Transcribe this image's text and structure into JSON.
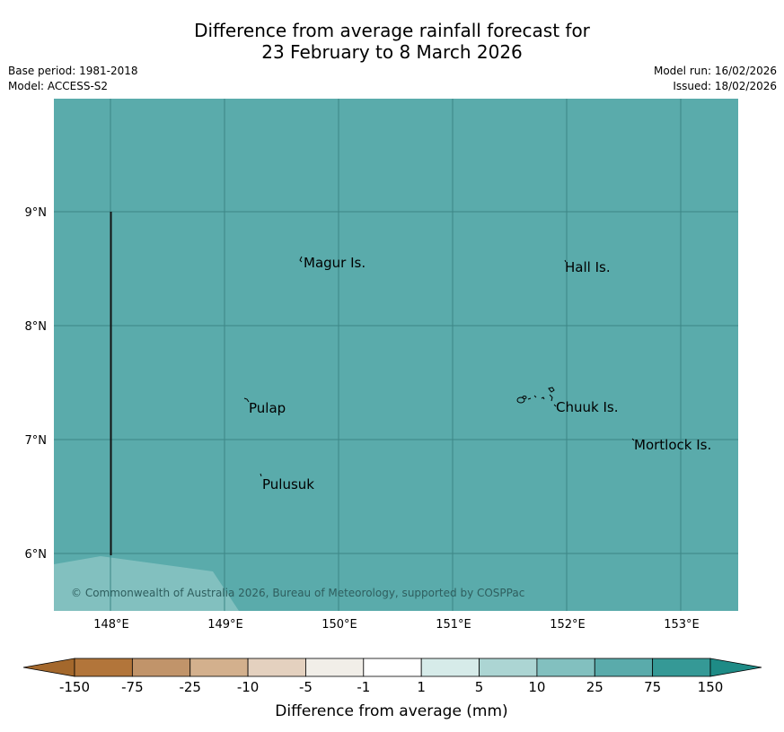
{
  "title": {
    "line1": "Difference from average rainfall forecast for",
    "line2": "23 February to 8 March 2026"
  },
  "meta": {
    "base_period": "Base period: 1981-2018",
    "model": "Model: ACCESS-S2",
    "model_run": "Model run: 16/02/2026",
    "issued": "Issued: 18/02/2026"
  },
  "map": {
    "longitude_ticks": [
      "148°E",
      "149°E",
      "150°E",
      "151°E",
      "152°E",
      "153°E"
    ],
    "latitude_ticks": [
      "9°N",
      "8°N",
      "7°N",
      "6°N"
    ],
    "places": [
      "Magur Is.",
      "Hall Is.",
      "Pulap",
      "Chuuk Is.",
      "Mortlock Is.",
      "Pulusuk"
    ],
    "copyright": "© Commonwealth of Australia 2026, Bureau of Meteorology, supported by COSPPac",
    "colors": {
      "ocean_fill": "#5aabab",
      "lighter_fill": "#82c0bf",
      "grid": "#3c8686"
    }
  },
  "colorbar": {
    "title": "Difference from average (mm)",
    "tick_labels": [
      "-150",
      "-75",
      "-25",
      "-10",
      "-5",
      "-1",
      "1",
      "5",
      "10",
      "25",
      "75",
      "150"
    ],
    "colors": [
      "#a4682c",
      "#b2753a",
      "#c1946a",
      "#d3b08d",
      "#e4d1bf",
      "#f1eee8",
      "#ffffff",
      "#d6ebe9",
      "#acd5d3",
      "#82c0bf",
      "#5aabab",
      "#359996",
      "#1e8b86"
    ]
  }
}
